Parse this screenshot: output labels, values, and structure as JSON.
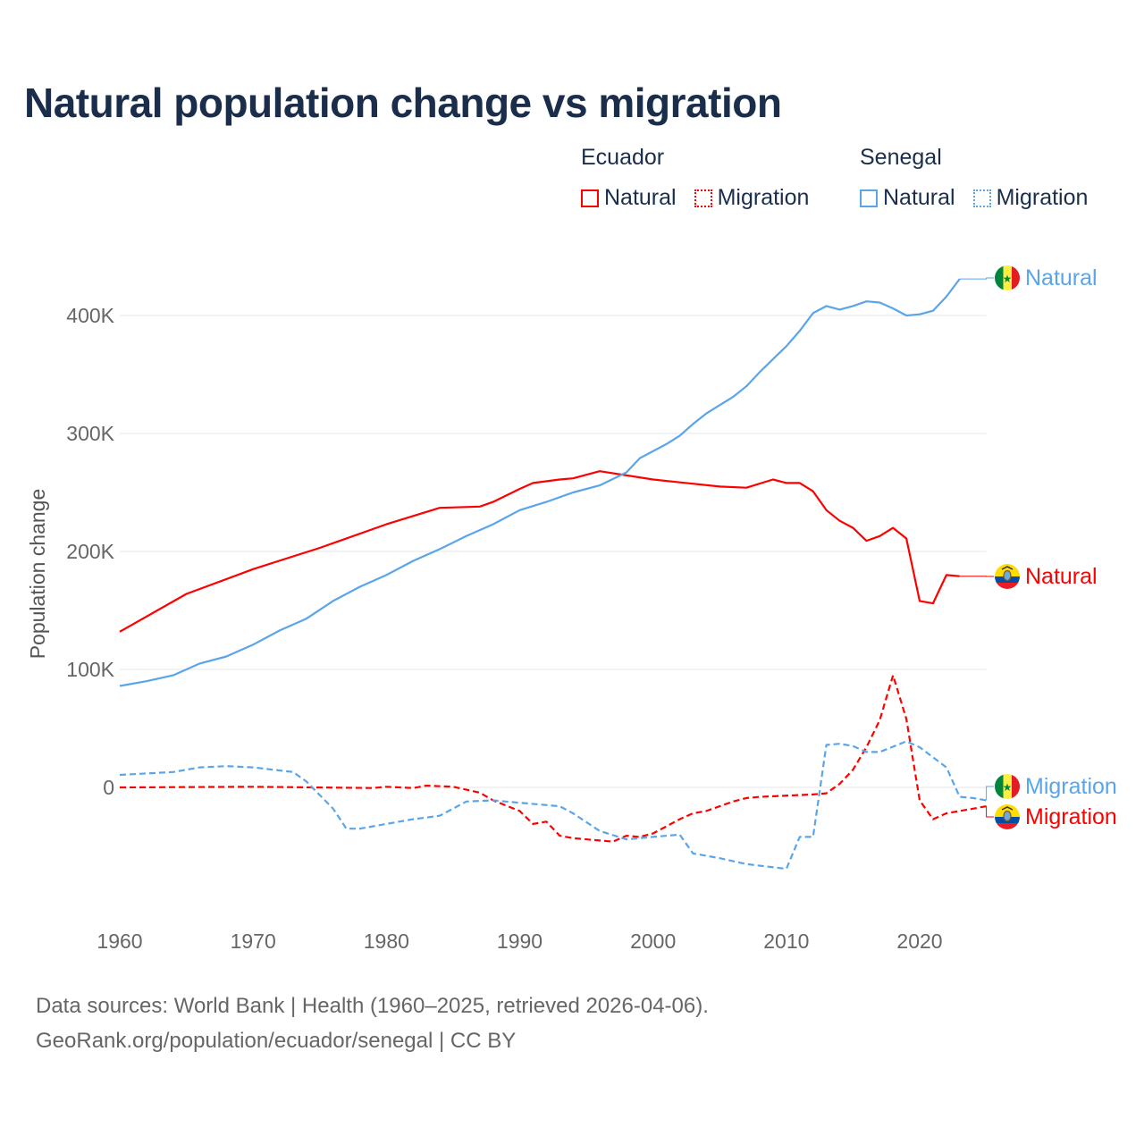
{
  "title": "Natural population change vs migration",
  "legend": [
    {
      "country": "Ecuador",
      "items": [
        {
          "label": "Natural",
          "color": "#ff0000",
          "style": "solid"
        },
        {
          "label": "Migration",
          "color": "#ff0000",
          "style": "dotted"
        }
      ]
    },
    {
      "country": "Senegal",
      "items": [
        {
          "label": "Natural",
          "color": "#5aa5ea",
          "style": "solid"
        },
        {
          "label": "Migration",
          "color": "#5aa5ea",
          "style": "dotted"
        }
      ]
    }
  ],
  "footer": {
    "line1": "Data sources: World Bank | Health (1960–2025, retrieved 2026-04-06).",
    "line2": "GeoRank.org/population/ecuador/senegal | CC BY"
  },
  "chart_data": {
    "type": "line",
    "title": "Natural population change vs migration",
    "xlabel": "",
    "ylabel": "Population change",
    "xlim": [
      1960,
      2025
    ],
    "ylim": [
      -100000,
      450000
    ],
    "xticks": [
      1960,
      1970,
      1980,
      1990,
      2000,
      2010,
      2020
    ],
    "xtick_labels": [
      "1960",
      "1970",
      "1980",
      "1990",
      "2000",
      "2010",
      "2020"
    ],
    "yticks": [
      0,
      100000,
      200000,
      300000,
      400000
    ],
    "ytick_labels": [
      "0",
      "100K",
      "200K",
      "300K",
      "400K"
    ],
    "grid": true,
    "legend_position": "top-right",
    "series": [
      {
        "name": "Ecuador Natural",
        "end_label": "Natural",
        "color": "#ff0000",
        "dash": false,
        "flag": "ecuador",
        "x": [
          1960,
          1965,
          1970,
          1975,
          1980,
          1984,
          1987,
          1988,
          1990,
          1991,
          1993,
          1994,
          1996,
          2000,
          2005,
          2007,
          2009,
          2010,
          2011,
          2012,
          2013,
          2014,
          2015,
          2016,
          2017,
          2018,
          2019,
          2020,
          2021,
          2022,
          2023
        ],
        "y": [
          132000,
          164000,
          185000,
          203000,
          223000,
          237000,
          238000,
          242000,
          253000,
          258000,
          261000,
          262000,
          268000,
          261000,
          255000,
          254000,
          261000,
          258000,
          258000,
          251000,
          235000,
          226000,
          220000,
          209000,
          213000,
          220000,
          211000,
          158000,
          156000,
          180000,
          179000
        ]
      },
      {
        "name": "Ecuador Migration",
        "end_label": "Migration",
        "color": "#ff0000",
        "dash": true,
        "flag": "ecuador",
        "x": [
          1960,
          1970,
          1979,
          1980,
          1982,
          1983,
          1985,
          1986,
          1987,
          1988,
          1990,
          1991,
          1992,
          1993,
          1994,
          1997,
          1998,
          1999,
          2000,
          2001,
          2002,
          2003,
          2004,
          2006,
          2007,
          2008,
          2012,
          2013,
          2014,
          2015,
          2016,
          2017,
          2018,
          2019,
          2020,
          2021,
          2022,
          2023,
          2024,
          2025
        ],
        "y": [
          0,
          500,
          -500,
          500,
          -500,
          1500,
          500,
          -2000,
          -4500,
          -11000,
          -20000,
          -31000,
          -29000,
          -41000,
          -43000,
          -46000,
          -41000,
          -42000,
          -39000,
          -33000,
          -27000,
          -22000,
          -20000,
          -12000,
          -9000,
          -8000,
          -6000,
          -5000,
          3000,
          15000,
          34000,
          57000,
          95000,
          58000,
          -11000,
          -27000,
          -22000,
          -20000,
          -18000,
          -16000
        ]
      },
      {
        "name": "Senegal Natural",
        "end_label": "Natural",
        "color": "#5aa5ea",
        "dash": false,
        "flag": "senegal",
        "x": [
          1960,
          1962,
          1964,
          1966,
          1968,
          1970,
          1972,
          1974,
          1976,
          1978,
          1980,
          1982,
          1984,
          1986,
          1988,
          1990,
          1992,
          1994,
          1996,
          1998,
          1999,
          2001,
          2002,
          2003,
          2004,
          2006,
          2007,
          2008,
          2009,
          2010,
          2011,
          2012,
          2013,
          2014,
          2015,
          2016,
          2017,
          2018,
          2019,
          2020,
          2021,
          2022,
          2023
        ],
        "y": [
          86000,
          90000,
          95000,
          105000,
          111000,
          121000,
          133000,
          143000,
          158000,
          170000,
          180000,
          192000,
          202000,
          213000,
          223000,
          235000,
          242000,
          250000,
          256000,
          267000,
          279000,
          291000,
          298000,
          308000,
          317000,
          331000,
          340000,
          352000,
          363000,
          374000,
          387000,
          402000,
          408000,
          405000,
          408000,
          412000,
          411000,
          406000,
          400000,
          401000,
          404000,
          416000,
          431000
        ]
      },
      {
        "name": "Senegal Migration",
        "end_label": "Migration",
        "color": "#5aa5ea",
        "dash": true,
        "flag": "senegal",
        "x": [
          1960,
          1964,
          1966,
          1968,
          1970,
          1973,
          1974,
          1976,
          1977,
          1978,
          1980,
          1982,
          1984,
          1986,
          1988,
          1990,
          1993,
          1994,
          1996,
          1998,
          2000,
          2002,
          2003,
          2005,
          2007,
          2010,
          2011,
          2012,
          2013,
          2014,
          2015,
          2016,
          2017,
          2019,
          2020,
          2022,
          2023,
          2024,
          2025
        ],
        "y": [
          10600,
          13000,
          17000,
          18000,
          17000,
          13000,
          5000,
          -18000,
          -35000,
          -35000,
          -31000,
          -27000,
          -24000,
          -12000,
          -11000,
          -13000,
          -16000,
          -22000,
          -37000,
          -44000,
          -42000,
          -40000,
          -56000,
          -60000,
          -65000,
          -69000,
          -42000,
          -42000,
          36000,
          37000,
          35000,
          30000,
          30000,
          39000,
          34000,
          17000,
          -8000,
          -9000,
          -11000
        ]
      }
    ]
  }
}
